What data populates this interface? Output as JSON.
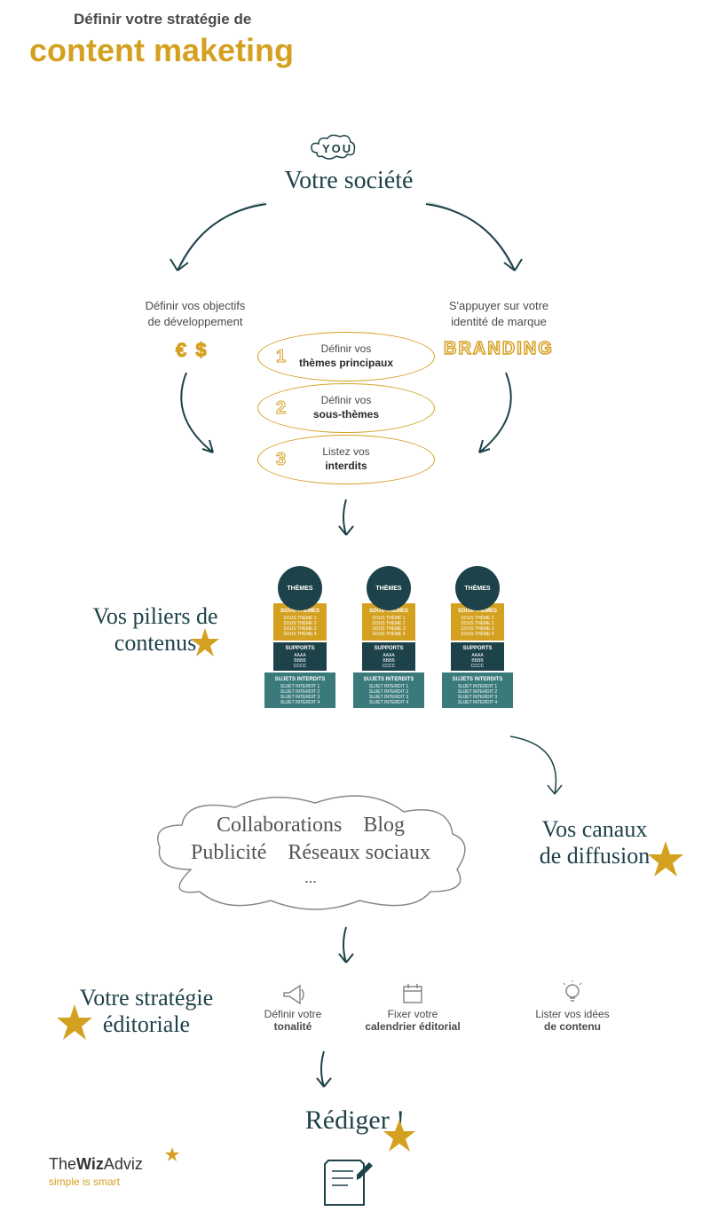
{
  "colors": {
    "accent": "#d4a020",
    "dark": "#1d4249",
    "teal": "#3a7a7a",
    "text": "#4a4a4a",
    "bg": "#ffffff"
  },
  "header": {
    "subtitle": "Définir votre stratégie de",
    "title": "content maketing"
  },
  "top": {
    "you": "YOU",
    "heading": "Votre société",
    "left_label_l1": "Définir vos objectifs",
    "left_label_l2": "de développement",
    "right_label_l1": "S'appuyer sur votre",
    "right_label_l2": "identité de marque",
    "currency": "€ $",
    "branding": "BRANDING"
  },
  "steps": [
    {
      "num": "1",
      "l1": "Définir vos",
      "l2": "thèmes principaux"
    },
    {
      "num": "2",
      "l1": "Définir vos",
      "l2": "sous-thèmes"
    },
    {
      "num": "3",
      "l1": "Listez  vos",
      "l2": "interdits"
    }
  ],
  "pillars": {
    "heading_l1": "Vos piliers de",
    "heading_l2": "contenus",
    "columns": [
      {
        "circle": "THÈMES",
        "yellow_header": "SOUS-THÈMES",
        "yellow_items": [
          "SOUS THÈME 1",
          "SOUS THÈME 2",
          "SOUS THÈME 3",
          "SOUS THÈME 4"
        ],
        "dark_header": "SUPPORTS",
        "dark_items": [
          "AAAA",
          "BBBB",
          "CCCC"
        ],
        "teal_header": "SUJETS INTERDITS",
        "teal_items": [
          "SUJET INTERDIT 1",
          "SUJET INTERDIT 2",
          "SUJET INTERDIT 3",
          "SUJET INTERDIT 4"
        ]
      },
      {
        "circle": "THÈMES",
        "yellow_header": "SOUS-THÈMES",
        "yellow_items": [
          "SOUS THÈME 1",
          "SOUS THÈME 2",
          "SOUS THÈME 3",
          "SOUS THÈME 4"
        ],
        "dark_header": "SUPPORTS",
        "dark_items": [
          "AAAA",
          "BBBB",
          "CCCC"
        ],
        "teal_header": "SUJETS INTERDITS",
        "teal_items": [
          "SUJET INTERDIT 1",
          "SUJET INTERDIT 2",
          "SUJET INTERDIT 3",
          "SUJET INTERDIT 4"
        ]
      },
      {
        "circle": "THÈMES",
        "yellow_header": "SOUS-THÈMES",
        "yellow_items": [
          "SOUS THÈME 1",
          "SOUS THÈME 2",
          "SOUS THÈME 3",
          "SOUS THÈME 4"
        ],
        "dark_header": "SUPPORTS",
        "dark_items": [
          "AAAA",
          "BBBB",
          "CCCC"
        ],
        "teal_header": "SUJETS INTERDITS",
        "teal_items": [
          "SUJET INTERDIT 1",
          "SUJET INTERDIT 2",
          "SUJET INTERDIT 3",
          "SUJET INTERDIT 4"
        ]
      }
    ]
  },
  "channels": {
    "heading_l1": "Vos canaux",
    "heading_l2": "de diffusion",
    "items": [
      "Collaborations",
      "Blog",
      "Publicité",
      "Réseaux sociaux",
      "..."
    ]
  },
  "editorial": {
    "heading_l1": "Votre stratégie",
    "heading_l2": "éditoriale",
    "items": [
      {
        "icon": "megaphone",
        "l1": "Définir votre",
        "l2": "tonalité"
      },
      {
        "icon": "calendar",
        "l1": "Fixer votre",
        "l2": "calendrier éditorial"
      },
      {
        "icon": "lightbulb",
        "l1": "Lister vos idées",
        "l2": "de contenu"
      }
    ]
  },
  "final": {
    "heading": "Rédiger !"
  },
  "logo": {
    "the": "The",
    "wiz": "Wiz",
    "adviz": "Adviz",
    "tagline": "simple is smart"
  }
}
